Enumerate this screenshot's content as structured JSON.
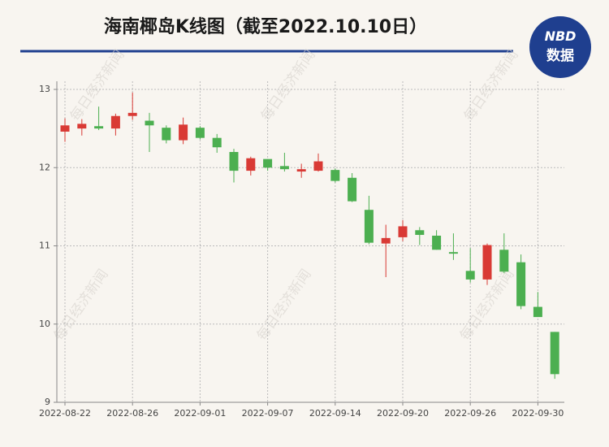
{
  "chart_data": {
    "type": "candlestick",
    "title": "海南椰岛K线图（截至2022.10.10日）",
    "logo": {
      "top": "NBD",
      "bottom": "数据"
    },
    "watermark": "每日经济新闻",
    "categories": [
      "2022-08-22",
      null,
      null,
      null,
      "2022-08-26",
      null,
      null,
      null,
      "2022-09-01",
      null,
      null,
      null,
      "2022-09-07",
      null,
      null,
      null,
      "2022-09-14",
      null,
      null,
      null,
      "2022-09-20",
      null,
      null,
      null,
      "2022-09-26",
      null,
      null,
      null,
      "2022-09-30",
      null
    ],
    "open": [
      12.46,
      12.5,
      12.53,
      12.5,
      12.66,
      12.6,
      12.51,
      12.35,
      12.51,
      12.38,
      12.2,
      11.96,
      12.11,
      12.02,
      11.95,
      11.96,
      11.97,
      11.87,
      11.46,
      11.03,
      11.11,
      11.2,
      11.13,
      10.92,
      10.68,
      10.57,
      10.95,
      10.79,
      10.22,
      9.9
    ],
    "high": [
      12.63,
      12.62,
      12.78,
      12.69,
      12.96,
      12.7,
      12.54,
      12.64,
      12.53,
      12.43,
      12.24,
      12.14,
      12.11,
      12.19,
      12.05,
      12.18,
      11.99,
      11.93,
      11.64,
      11.27,
      11.33,
      11.24,
      11.2,
      11.16,
      10.97,
      11.03,
      11.16,
      10.89,
      10.41,
      9.9
    ],
    "low": [
      12.33,
      12.41,
      12.48,
      12.41,
      12.61,
      12.2,
      12.31,
      12.3,
      12.36,
      12.19,
      11.81,
      11.9,
      11.96,
      11.95,
      11.87,
      11.95,
      11.81,
      11.56,
      11.02,
      10.6,
      11.06,
      11.01,
      10.95,
      10.82,
      10.53,
      10.5,
      10.65,
      10.19,
      10.09,
      9.3
    ],
    "close": [
      12.54,
      12.56,
      12.5,
      12.66,
      12.7,
      12.54,
      12.35,
      12.55,
      12.38,
      12.26,
      11.96,
      12.12,
      12.0,
      11.98,
      11.98,
      12.08,
      11.83,
      11.57,
      11.04,
      11.1,
      11.25,
      11.14,
      10.95,
      10.9,
      10.57,
      11.01,
      10.67,
      10.23,
      10.09,
      9.36
    ],
    "up_color": "#d93a35",
    "down_color": "#4caf50",
    "ylim": [
      9,
      13
    ],
    "yticks": [
      9,
      10,
      11,
      12,
      13
    ],
    "grid": true
  }
}
